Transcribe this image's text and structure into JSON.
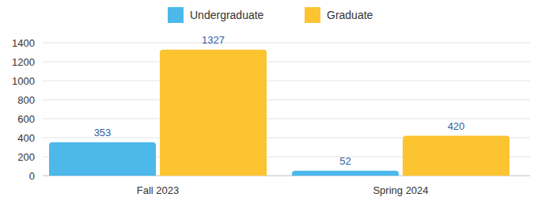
{
  "chart_data": {
    "type": "bar",
    "categories": [
      "Fall 2023",
      "Spring 2024"
    ],
    "series": [
      {
        "name": "Undergraduate",
        "color": "#4db8ea",
        "values": [
          353,
          52
        ]
      },
      {
        "name": "Graduate",
        "color": "#fdc431",
        "values": [
          1327,
          420
        ]
      }
    ],
    "ylim": [
      0,
      1400
    ],
    "yticks": [
      0,
      200,
      400,
      600,
      800,
      1000,
      1200,
      1400
    ],
    "grid": true,
    "legend": "top",
    "data_labels": true
  }
}
